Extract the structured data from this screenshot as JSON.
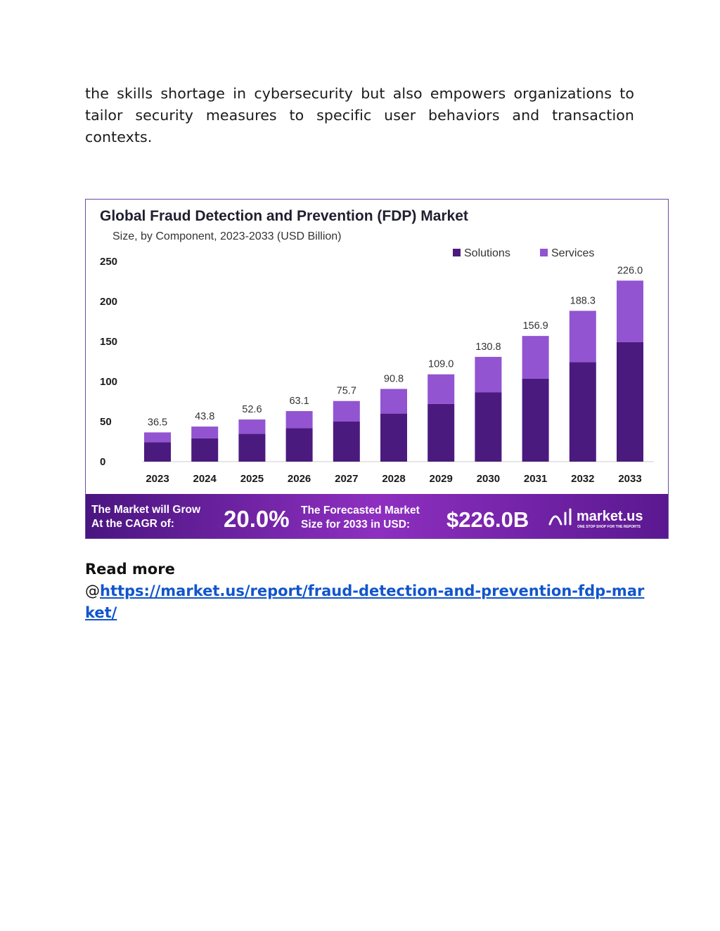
{
  "paragraph": {
    "text": "the skills shortage in cybersecurity but also empowers organizations to tailor security measures to specific user behaviors and transaction contexts."
  },
  "chart_data": {
    "type": "bar",
    "stacked": true,
    "title": "Global Fraud Detection and Prevention (FDP) Market",
    "subtitle": "Size, by Component, 2023-2033 (USD Billion)",
    "categories": [
      "2023",
      "2024",
      "2025",
      "2026",
      "2027",
      "2028",
      "2029",
      "2030",
      "2031",
      "2032",
      "2033"
    ],
    "totals": [
      "36.5",
      "43.8",
      "52.6",
      "63.1",
      "75.7",
      "90.8",
      "109.0",
      "130.8",
      "156.9",
      "188.3",
      "226.0"
    ],
    "series": [
      {
        "name": "Solutions",
        "color": "#4b1a7e",
        "values": [
          24.2,
          29.0,
          34.8,
          41.7,
          50.0,
          60.0,
          72.0,
          86.4,
          103.6,
          124.3,
          149.2
        ]
      },
      {
        "name": "Services",
        "color": "#9254d1",
        "values": [
          12.3,
          14.8,
          17.8,
          21.4,
          25.7,
          30.8,
          37.0,
          44.4,
          53.3,
          64.0,
          76.8
        ]
      }
    ],
    "ylim": [
      0,
      250
    ],
    "yticks": [
      "250",
      "200",
      "150",
      "100",
      "50",
      "0"
    ],
    "legend_position": "top-right",
    "grid": false
  },
  "banner": {
    "cagr_label_line1": "The Market will Grow",
    "cagr_label_line2": "At the CAGR of:",
    "cagr_value": "20.0%",
    "forecast_label_line1": "The Forecasted Market",
    "forecast_label_line2": "Size for 2033 in USD:",
    "forecast_value": "$226.0B",
    "brand_name": "market.us",
    "brand_tagline": "ONE STOP SHOP FOR THE REPORTS",
    "gradient_colors": [
      "#4a1580",
      "#8e2fc0",
      "#5a1890"
    ]
  },
  "readmore": {
    "label": "Read more",
    "at": "@",
    "link_text": "https://market.us/report/fraud-detection-and-prevention-fdp-market/"
  }
}
